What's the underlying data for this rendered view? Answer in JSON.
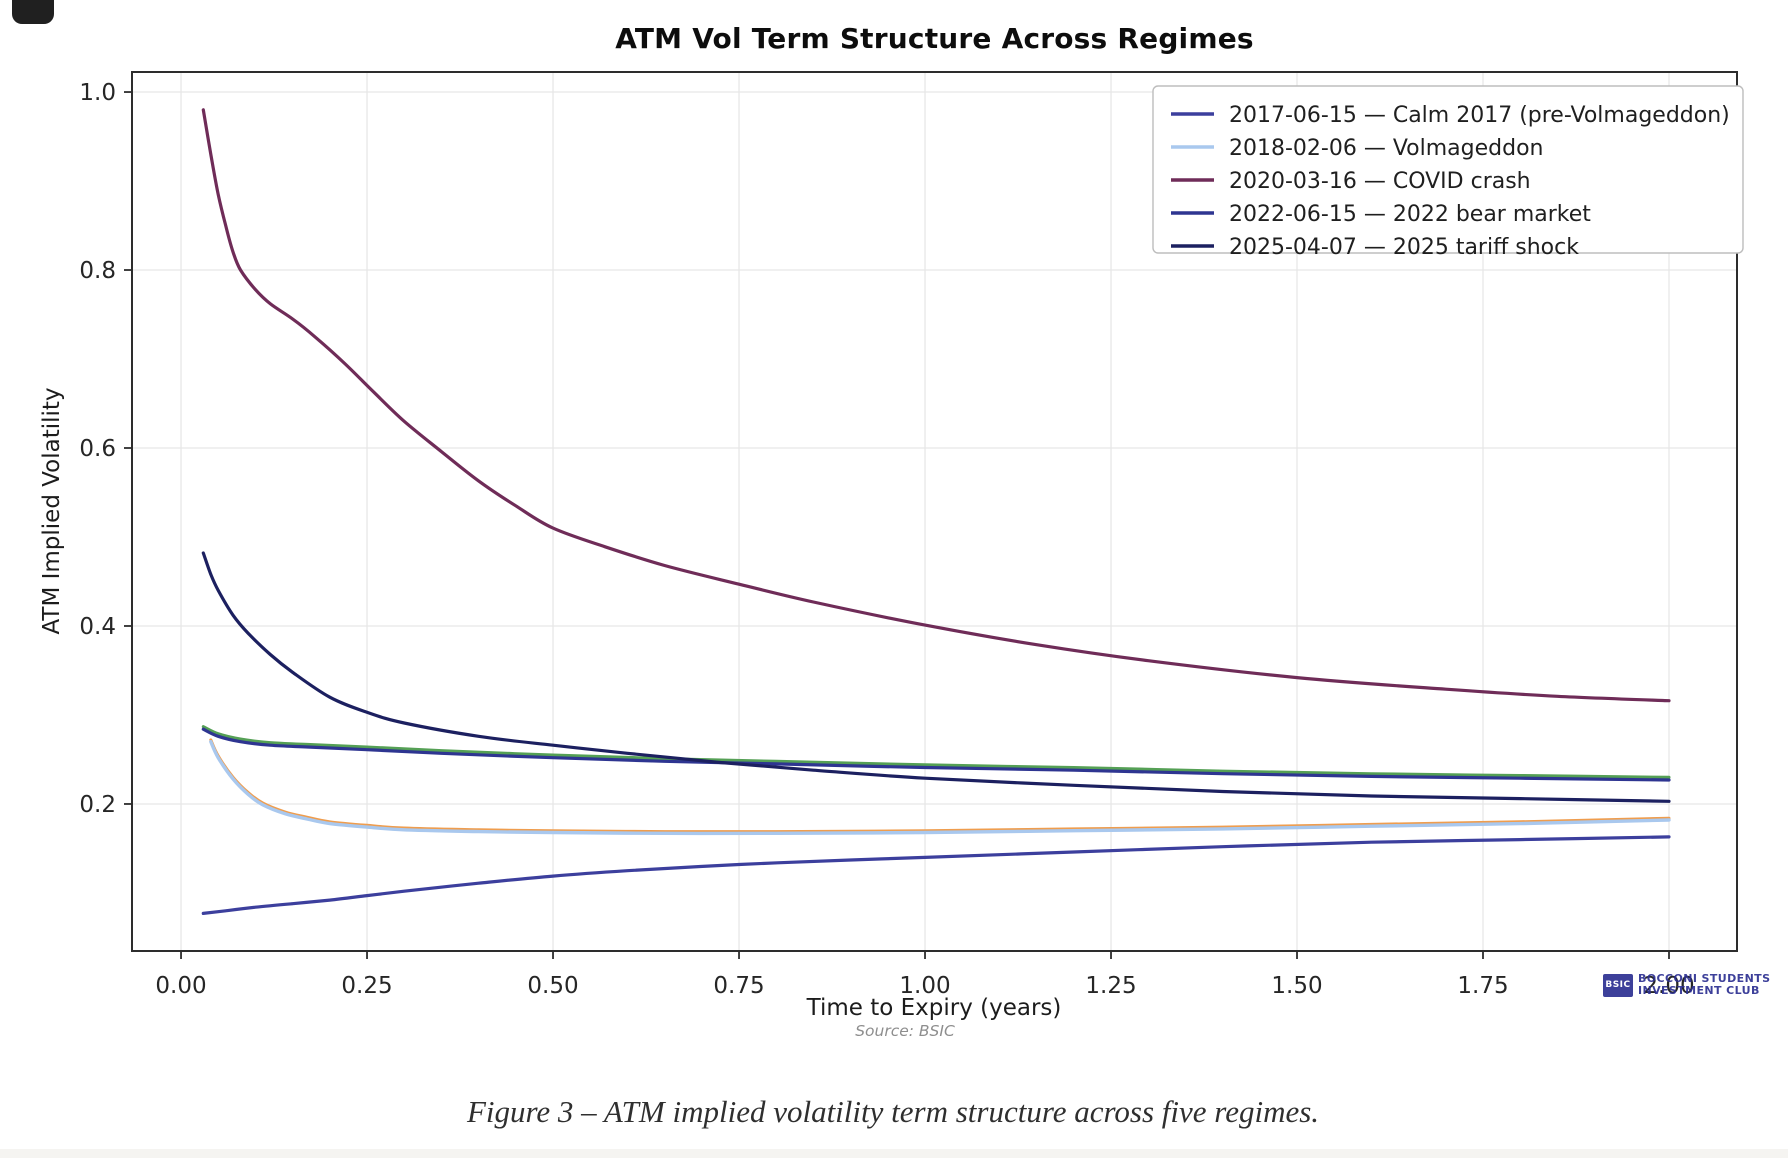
{
  "page": {
    "caption": "Figure 3 – ATM implied volatility term structure across five regimes."
  },
  "source_note": "Source: BSIC",
  "watermark": {
    "logo_text": "BSIC",
    "line1": "BOCCONI STUDENTS",
    "line2": "INVESTMENT CLUB",
    "color": "#2d3092"
  },
  "chart_data": {
    "type": "line",
    "title": "ATM Vol Term Structure Across Regimes",
    "xlabel": "Time to Expiry (years)",
    "ylabel": "ATM Implied Volatility",
    "xlim": [
      -0.0659,
      2.0914
    ],
    "ylim": [
      0.0348,
      1.0225
    ],
    "grid": true,
    "grid_color": "#e7e7e7",
    "spine_color": "#2d2d2d",
    "legend_position": "upper right",
    "x_ticks": [
      {
        "value": 0.0,
        "label": "0.00"
      },
      {
        "value": 0.25,
        "label": "0.25"
      },
      {
        "value": 0.5,
        "label": "0.50"
      },
      {
        "value": 0.75,
        "label": "0.75"
      },
      {
        "value": 1.0,
        "label": "1.00"
      },
      {
        "value": 1.25,
        "label": "1.25"
      },
      {
        "value": 1.5,
        "label": "1.50"
      },
      {
        "value": 1.75,
        "label": "1.75"
      },
      {
        "value": 2.0,
        "label": "2.00"
      }
    ],
    "y_ticks": [
      {
        "value": 0.2,
        "label": "0.2"
      },
      {
        "value": 0.4,
        "label": "0.4"
      },
      {
        "value": 0.6,
        "label": "0.6"
      },
      {
        "value": 0.8,
        "label": "0.8"
      },
      {
        "value": 1.0,
        "label": "1.0"
      }
    ],
    "series": [
      {
        "id": "calm-2017",
        "legend_label": "2017-06-15 — Calm 2017 (pre-Volmageddon)",
        "color": "#3c3f9d",
        "width": 3.2,
        "z": 2,
        "points": [
          [
            0.03,
            0.077
          ],
          [
            0.06,
            0.08
          ],
          [
            0.1,
            0.084
          ],
          [
            0.15,
            0.088
          ],
          [
            0.2,
            0.092
          ],
          [
            0.25,
            0.097
          ],
          [
            0.3,
            0.102
          ],
          [
            0.4,
            0.111
          ],
          [
            0.5,
            0.119
          ],
          [
            0.6,
            0.125
          ],
          [
            0.75,
            0.132
          ],
          [
            0.9,
            0.137
          ],
          [
            1.0,
            0.14
          ],
          [
            1.2,
            0.146
          ],
          [
            1.4,
            0.152
          ],
          [
            1.6,
            0.157
          ],
          [
            1.8,
            0.16
          ],
          [
            2.0,
            0.163
          ]
        ]
      },
      {
        "id": "volmageddon",
        "legend_label": "2018-02-06 — Volmageddon",
        "color": "#a9c8ee",
        "width": 3.4,
        "z": 3,
        "points": [
          [
            0.04,
            0.27
          ],
          [
            0.05,
            0.252
          ],
          [
            0.07,
            0.228
          ],
          [
            0.09,
            0.211
          ],
          [
            0.11,
            0.199
          ],
          [
            0.14,
            0.189
          ],
          [
            0.17,
            0.183
          ],
          [
            0.2,
            0.178
          ],
          [
            0.25,
            0.174
          ],
          [
            0.3,
            0.171
          ],
          [
            0.4,
            0.169
          ],
          [
            0.5,
            0.168
          ],
          [
            0.65,
            0.167
          ],
          [
            0.8,
            0.167
          ],
          [
            1.0,
            0.168
          ],
          [
            1.2,
            0.17
          ],
          [
            1.4,
            0.172
          ],
          [
            1.6,
            0.175
          ],
          [
            1.8,
            0.178
          ],
          [
            2.0,
            0.182
          ]
        ]
      },
      {
        "id": "covid-crash",
        "legend_label": "2020-03-16 — COVID crash",
        "color": "#6f2c58",
        "width": 3.2,
        "z": 5,
        "points": [
          [
            0.03,
            0.98
          ],
          [
            0.04,
            0.93
          ],
          [
            0.05,
            0.885
          ],
          [
            0.06,
            0.85
          ],
          [
            0.07,
            0.82
          ],
          [
            0.08,
            0.8
          ],
          [
            0.1,
            0.778
          ],
          [
            0.12,
            0.762
          ],
          [
            0.15,
            0.745
          ],
          [
            0.18,
            0.725
          ],
          [
            0.22,
            0.695
          ],
          [
            0.26,
            0.662
          ],
          [
            0.3,
            0.63
          ],
          [
            0.35,
            0.596
          ],
          [
            0.4,
            0.563
          ],
          [
            0.45,
            0.535
          ],
          [
            0.5,
            0.51
          ],
          [
            0.57,
            0.489
          ],
          [
            0.65,
            0.468
          ],
          [
            0.75,
            0.447
          ],
          [
            0.85,
            0.427
          ],
          [
            1.0,
            0.401
          ],
          [
            1.15,
            0.379
          ],
          [
            1.3,
            0.361
          ],
          [
            1.5,
            0.342
          ],
          [
            1.7,
            0.329
          ],
          [
            1.85,
            0.321
          ],
          [
            2.0,
            0.316
          ]
        ]
      },
      {
        "id": "bear-2022",
        "legend_label": "2022-06-15 — 2022 bear market",
        "color": "#2e3591",
        "width": 3.2,
        "z": 4,
        "points": [
          [
            0.03,
            0.284
          ],
          [
            0.05,
            0.276
          ],
          [
            0.08,
            0.27
          ],
          [
            0.12,
            0.266
          ],
          [
            0.17,
            0.264
          ],
          [
            0.25,
            0.261
          ],
          [
            0.35,
            0.257
          ],
          [
            0.5,
            0.252
          ],
          [
            0.65,
            0.248
          ],
          [
            0.8,
            0.245
          ],
          [
            1.0,
            0.241
          ],
          [
            1.2,
            0.238
          ],
          [
            1.4,
            0.234
          ],
          [
            1.6,
            0.231
          ],
          [
            1.8,
            0.229
          ],
          [
            2.0,
            0.227
          ]
        ]
      },
      {
        "id": "tariff-2025",
        "legend_label": "2025-04-07 — 2025 tariff shock",
        "color": "#1c2060",
        "width": 3.2,
        "z": 6,
        "points": [
          [
            0.03,
            0.482
          ],
          [
            0.04,
            0.458
          ],
          [
            0.05,
            0.44
          ],
          [
            0.07,
            0.412
          ],
          [
            0.09,
            0.392
          ],
          [
            0.12,
            0.368
          ],
          [
            0.15,
            0.348
          ],
          [
            0.2,
            0.32
          ],
          [
            0.25,
            0.303
          ],
          [
            0.3,
            0.291
          ],
          [
            0.4,
            0.276
          ],
          [
            0.5,
            0.266
          ],
          [
            0.6,
            0.257
          ],
          [
            0.72,
            0.247
          ],
          [
            0.85,
            0.238
          ],
          [
            1.0,
            0.229
          ],
          [
            1.2,
            0.221
          ],
          [
            1.4,
            0.214
          ],
          [
            1.6,
            0.209
          ],
          [
            1.8,
            0.206
          ],
          [
            2.0,
            0.203
          ]
        ]
      },
      {
        "id": "overplot-orange",
        "legend_label": null,
        "color": "#ef9d4e",
        "width": 3.0,
        "z": 0,
        "points": [
          [
            0.04,
            0.272
          ],
          [
            0.05,
            0.254
          ],
          [
            0.07,
            0.23
          ],
          [
            0.09,
            0.213
          ],
          [
            0.11,
            0.201
          ],
          [
            0.14,
            0.191
          ],
          [
            0.17,
            0.185
          ],
          [
            0.2,
            0.18
          ],
          [
            0.25,
            0.176
          ],
          [
            0.3,
            0.173
          ],
          [
            0.4,
            0.171
          ],
          [
            0.5,
            0.17
          ],
          [
            0.65,
            0.169
          ],
          [
            0.8,
            0.169
          ],
          [
            1.0,
            0.17
          ],
          [
            1.2,
            0.172
          ],
          [
            1.4,
            0.174
          ],
          [
            1.6,
            0.177
          ],
          [
            1.8,
            0.18
          ],
          [
            2.0,
            0.184
          ]
        ]
      },
      {
        "id": "overplot-green",
        "legend_label": null,
        "color": "#55a055",
        "width": 3.0,
        "z": 1,
        "points": [
          [
            0.03,
            0.287
          ],
          [
            0.05,
            0.279
          ],
          [
            0.08,
            0.273
          ],
          [
            0.12,
            0.269
          ],
          [
            0.17,
            0.267
          ],
          [
            0.25,
            0.264
          ],
          [
            0.35,
            0.26
          ],
          [
            0.5,
            0.255
          ],
          [
            0.65,
            0.251
          ],
          [
            0.8,
            0.248
          ],
          [
            1.0,
            0.244
          ],
          [
            1.2,
            0.241
          ],
          [
            1.4,
            0.237
          ],
          [
            1.6,
            0.234
          ],
          [
            1.8,
            0.232
          ],
          [
            2.0,
            0.23
          ]
        ]
      }
    ]
  }
}
